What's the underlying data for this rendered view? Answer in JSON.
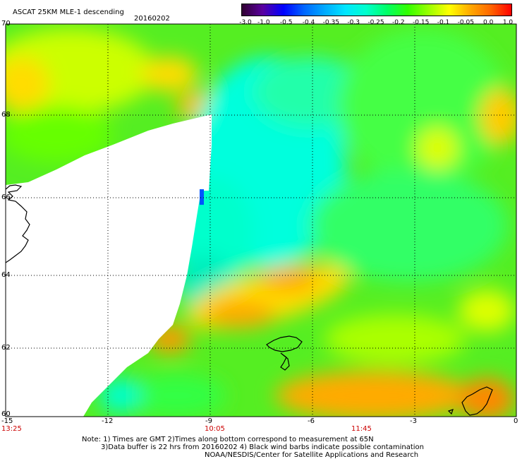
{
  "header": {
    "title": "ASCAT 25KM MLE-1 descending",
    "date": "20160202"
  },
  "colorbar": {
    "ticks": [
      "-3.0",
      "-1.0",
      "-0.5",
      "-0.4",
      "-0.35",
      "-0.3",
      "-0.25",
      "-0.2",
      "-0.15",
      "-0.1",
      "-0.05",
      "0.0",
      "1.0"
    ],
    "colors": [
      "#300030",
      "#5a00a0",
      "#0000ff",
      "#0066ff",
      "#00aaff",
      "#00e6ff",
      "#00ffcc",
      "#00ff66",
      "#33ff00",
      "#99ff00",
      "#ffff00",
      "#ffaa00",
      "#ff6600",
      "#ff0000"
    ]
  },
  "axes": {
    "lat_labels": [
      "70",
      "68",
      "66",
      "64",
      "62",
      "60"
    ],
    "lon_labels": [
      "-15",
      "-12",
      "-9",
      "-6",
      "-3",
      "0"
    ],
    "time_labels": [
      "13:25",
      "10:05",
      "11:45"
    ]
  },
  "notes": {
    "line1": "Note: 1) Times are GMT 2)Times along bottom correspond to measurement at 65N",
    "line2": "3)Data buffer is 22 hrs from 20160202 4) Black wind barbs indicate possible contamination",
    "line3": "NOAA/NESDIS/Center for Satellite Applications and Research"
  },
  "colors": {
    "no_data": "#ffffff",
    "grid": "#000000",
    "coast": "#000000",
    "time_label": "#cc0000"
  }
}
